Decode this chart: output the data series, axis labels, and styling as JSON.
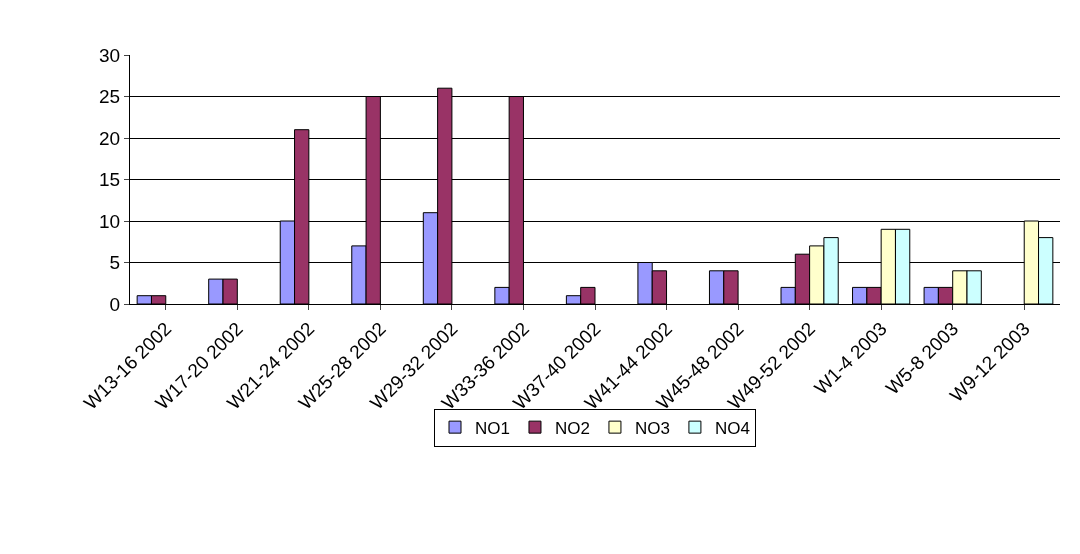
{
  "chart_data": {
    "type": "bar",
    "categories": [
      "W13-16 2002",
      "W17-20 2002",
      "W21-24 2002",
      "W25-28 2002",
      "W29-32 2002",
      "W33-36 2002",
      "W37-40 2002",
      "W41-44 2002",
      "W45-48 2002",
      "W49-52 2002",
      "W1-4 2003",
      "W5-8 2003",
      "W9-12 2003"
    ],
    "series": [
      {
        "name": "NO1",
        "color": "#9999ff",
        "values": [
          1,
          3,
          10,
          7,
          11,
          2,
          1,
          5,
          4,
          2,
          2,
          2,
          null
        ]
      },
      {
        "name": "NO2",
        "color": "#993366",
        "values": [
          1,
          3,
          21,
          25,
          26,
          25,
          2,
          4,
          4,
          6,
          2,
          2,
          null
        ]
      },
      {
        "name": "NO3",
        "color": "#ffffcc",
        "values": [
          null,
          null,
          null,
          null,
          null,
          null,
          null,
          null,
          null,
          7,
          9,
          4,
          10
        ]
      },
      {
        "name": "NO4",
        "color": "#ccffff",
        "values": [
          null,
          null,
          null,
          null,
          null,
          null,
          null,
          null,
          null,
          8,
          9,
          4,
          8
        ]
      }
    ],
    "ylim": [
      0,
      30
    ],
    "yticks": [
      0,
      5,
      10,
      15,
      20,
      25,
      30
    ],
    "grid": "y",
    "legend": "bottom"
  }
}
